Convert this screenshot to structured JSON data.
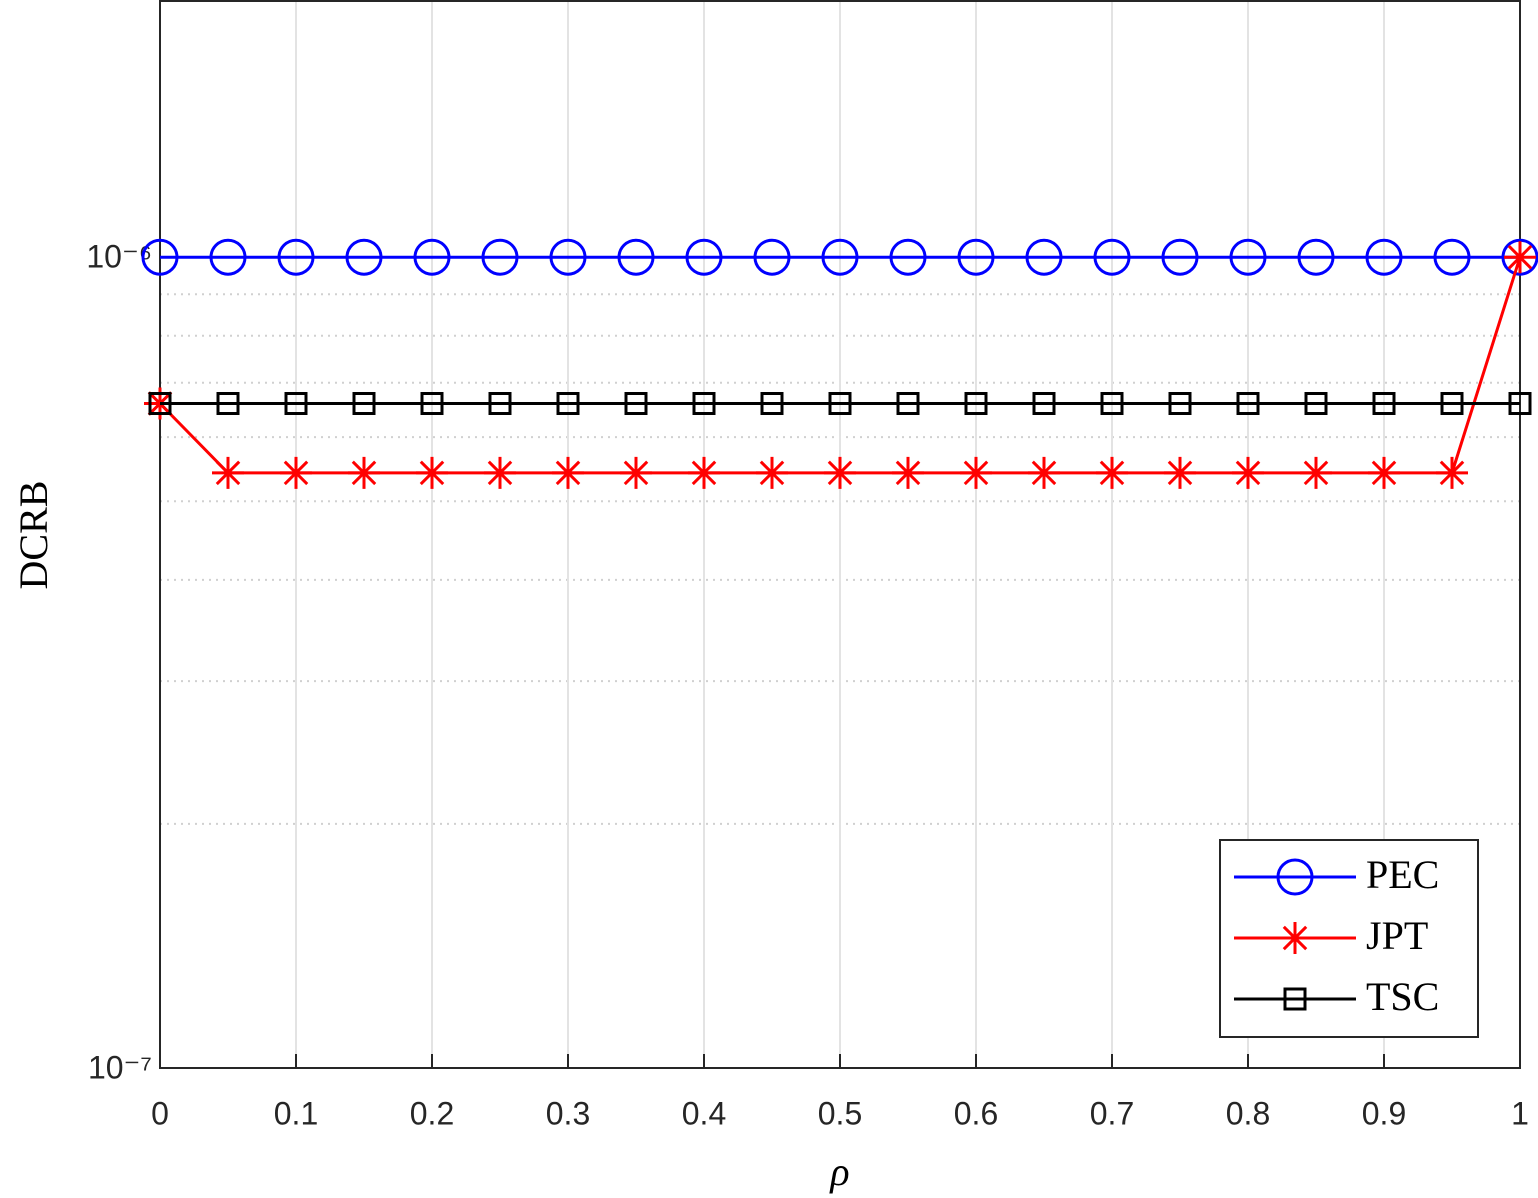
{
  "chart_data": {
    "type": "line",
    "x_label": "ρ",
    "y_label": "DCRB",
    "x": [
      0,
      0.05,
      0.1,
      0.15,
      0.2,
      0.25,
      0.3,
      0.35,
      0.4,
      0.45,
      0.5,
      0.55,
      0.6,
      0.65,
      0.7,
      0.75,
      0.8,
      0.85,
      0.9,
      0.95,
      1
    ],
    "series": [
      {
        "name": "PEC",
        "color": "#0000ff",
        "marker": "circle",
        "values": [
          1e-06,
          1e-06,
          1e-06,
          1e-06,
          1e-06,
          1e-06,
          1e-06,
          1e-06,
          1e-06,
          1e-06,
          1e-06,
          1e-06,
          1e-06,
          1e-06,
          1e-06,
          1e-06,
          1e-06,
          1e-06,
          1e-06,
          1e-06,
          1e-06
        ]
      },
      {
        "name": "JPT",
        "color": "#ff0000",
        "marker": "star",
        "values": [
          6.6e-07,
          5.42e-07,
          5.42e-07,
          5.42e-07,
          5.42e-07,
          5.42e-07,
          5.42e-07,
          5.42e-07,
          5.42e-07,
          5.42e-07,
          5.42e-07,
          5.42e-07,
          5.42e-07,
          5.42e-07,
          5.42e-07,
          5.42e-07,
          5.42e-07,
          5.42e-07,
          5.42e-07,
          5.42e-07,
          1e-06
        ]
      },
      {
        "name": "TSC",
        "color": "#000000",
        "marker": "square",
        "values": [
          6.6e-07,
          6.6e-07,
          6.6e-07,
          6.6e-07,
          6.6e-07,
          6.6e-07,
          6.6e-07,
          6.6e-07,
          6.6e-07,
          6.6e-07,
          6.6e-07,
          6.6e-07,
          6.6e-07,
          6.6e-07,
          6.6e-07,
          6.6e-07,
          6.6e-07,
          6.6e-07,
          6.6e-07,
          6.6e-07,
          6.6e-07
        ]
      }
    ],
    "xlim": [
      0,
      1
    ],
    "xticks": [
      0,
      0.1,
      0.2,
      0.3,
      0.4,
      0.5,
      0.6,
      0.7,
      0.8,
      0.9,
      1
    ],
    "ylim": [
      1e-07,
      2.07e-06
    ],
    "ylog": true,
    "yticks": [
      {
        "value": 1e-07,
        "label": "10⁻⁷"
      },
      {
        "value": 1e-06,
        "label": "10⁻⁶"
      }
    ],
    "yminor": [
      2e-07,
      3e-07,
      4e-07,
      5e-07,
      6e-07,
      7e-07,
      8e-07,
      9e-07
    ],
    "grid": true,
    "legend": "lower right"
  }
}
